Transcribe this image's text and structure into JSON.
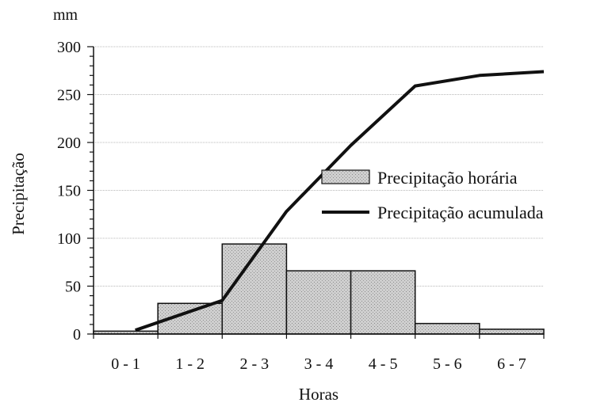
{
  "chart_data": {
    "type": "bar",
    "categories": [
      "0 - 1",
      "1 - 2",
      "2 - 3",
      "3 - 4",
      "4 - 5",
      "5 - 6",
      "6 - 7"
    ],
    "series": [
      {
        "name": "Precipitação horária",
        "kind": "bar",
        "values": [
          3,
          32,
          94,
          66,
          66,
          11,
          5
        ]
      },
      {
        "name": "Precipitação acumulada",
        "kind": "line",
        "values": [
          4,
          35,
          128,
          197,
          259,
          270,
          274
        ]
      }
    ],
    "y_ticks": [
      0,
      50,
      100,
      150,
      200,
      250,
      300
    ],
    "ylim": [
      0,
      300
    ],
    "ylabel": "Precipitação",
    "yunit": "mm",
    "xlabel": "Horas",
    "grid": true,
    "legend_position": "center-right",
    "colors": {
      "bar_fill": "#c9c9c9",
      "bar_stroke": "#111111",
      "line": "#111111",
      "grid": "#b8b8b8"
    }
  }
}
